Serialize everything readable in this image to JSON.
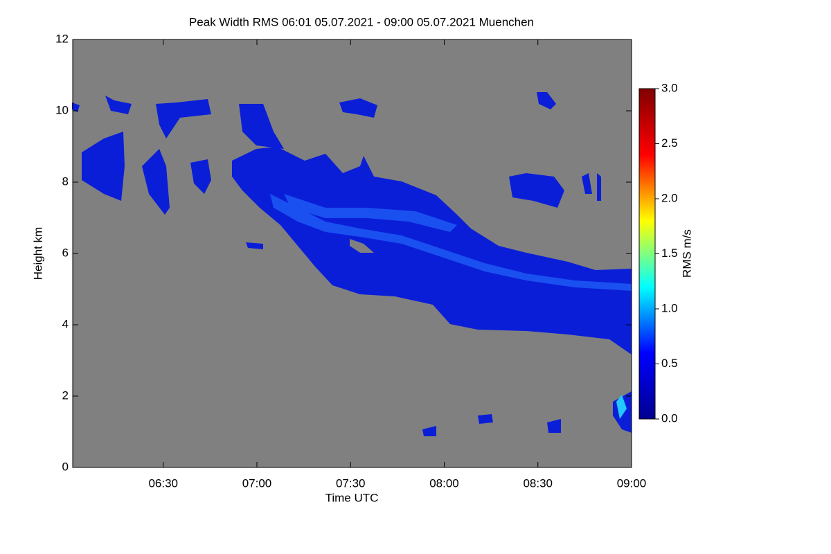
{
  "chart_data": {
    "type": "heatmap",
    "title": "Peak Width RMS   06:01 05.07.2021 - 09:00 05.07.2021 Muenchen",
    "x_label": "Time UTC",
    "y_label": "Height km",
    "xlim": [
      361,
      540
    ],
    "xticks": [
      {
        "value": 390,
        "label": "06:30"
      },
      {
        "value": 420,
        "label": "07:00"
      },
      {
        "value": 450,
        "label": "07:30"
      },
      {
        "value": 480,
        "label": "08:00"
      },
      {
        "value": 510,
        "label": "08:30"
      },
      {
        "value": 540,
        "label": "09:00"
      }
    ],
    "ylim": [
      0,
      12
    ],
    "yticks": [
      0,
      2,
      4,
      6,
      8,
      10,
      12
    ],
    "colorbar": {
      "label": "RMS m/s",
      "lim": [
        0,
        3
      ],
      "ticks": [
        {
          "value": 0,
          "label": "0.0"
        },
        {
          "value": 0.5,
          "label": "0.5"
        },
        {
          "value": 1,
          "label": "1.0"
        },
        {
          "value": 1.5,
          "label": "1.5"
        },
        {
          "value": 2,
          "label": "2.0"
        },
        {
          "value": 2.5,
          "label": "2.5"
        },
        {
          "value": 3,
          "label": "3.0"
        }
      ],
      "colors": [
        "#00008f",
        "#0000ff",
        "#00ffff",
        "#ffff00",
        "#ff0000",
        "#800000"
      ]
    },
    "background": "#808080"
  }
}
